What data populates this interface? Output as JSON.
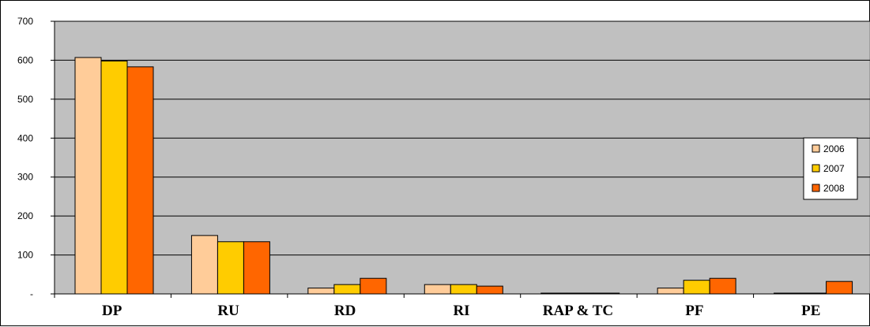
{
  "chart_data": {
    "type": "bar",
    "categories": [
      "DP",
      "RU",
      "RD",
      "RI",
      "RAP & TC",
      "PF",
      "PE"
    ],
    "series": [
      {
        "name": "2006",
        "values": [
          607,
          150,
          15,
          24,
          2,
          15,
          2
        ],
        "color": "#FFCC99"
      },
      {
        "name": "2007",
        "values": [
          598,
          134,
          24,
          24,
          2,
          35,
          2
        ],
        "color": "#FFCC00"
      },
      {
        "name": "2008",
        "values": [
          583,
          134,
          40,
          20,
          2,
          40,
          32
        ],
        "color": "#FF6600"
      }
    ],
    "yticks": [
      "-",
      "100",
      "200",
      "300",
      "400",
      "500",
      "600",
      "700"
    ],
    "ylim": [
      0,
      700
    ],
    "grid": true,
    "legend_position": "right",
    "plot_background": "#C0C0C0",
    "gridline_color": "#000000"
  }
}
